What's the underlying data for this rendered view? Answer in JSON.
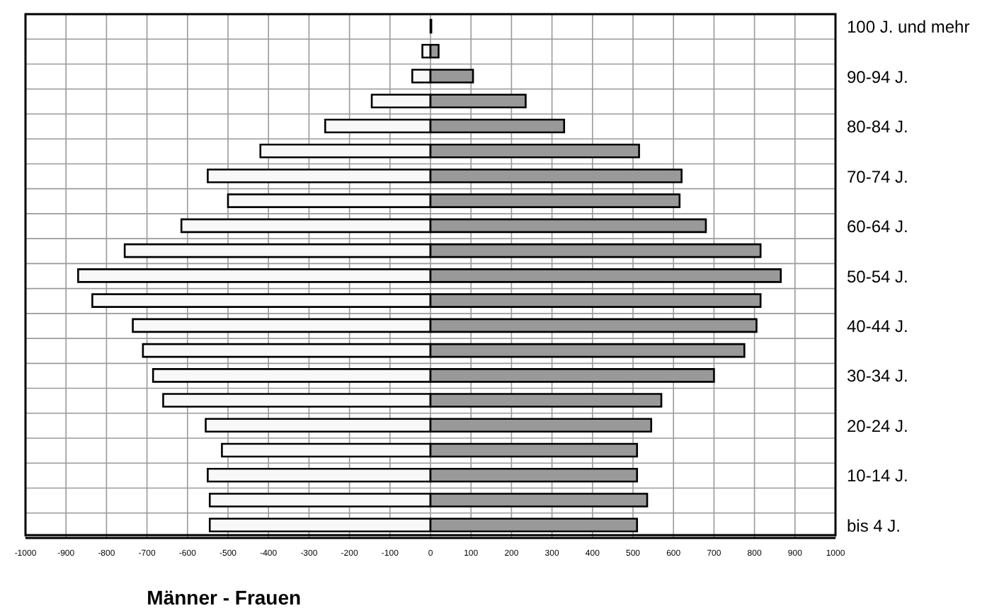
{
  "chart_data": {
    "type": "bar",
    "orientation": "horizontal",
    "stacked": true,
    "xlabel": "Männer - Frauen",
    "categories": [
      "100 J. und mehr",
      null,
      "90-94 J.",
      null,
      "80-84 J.",
      null,
      "70-74 J.",
      null,
      "60-64 J.",
      null,
      "50-54 J.",
      null,
      "40-44 J.",
      null,
      "30-34 J.",
      null,
      "20-24 J.",
      null,
      "10-14 J.",
      null,
      "bis 4 J."
    ],
    "series": [
      {
        "color": "#f8f8f8",
        "values": [
          null,
          -20,
          -45,
          -145,
          -260,
          -420,
          -550,
          -500,
          -615,
          -755,
          -870,
          -835,
          -735,
          -710,
          -685,
          -660,
          -555,
          -515,
          -550,
          -545,
          -545
        ]
      },
      {
        "color": "#999999",
        "values": [
          2,
          20,
          105,
          235,
          330,
          515,
          620,
          615,
          680,
          815,
          865,
          815,
          805,
          775,
          700,
          570,
          545,
          510,
          510,
          535,
          510
        ]
      }
    ],
    "xlim": [
      -1000,
      1000
    ],
    "xticks": [
      -1000,
      -900,
      -800,
      -700,
      -600,
      -500,
      -400,
      -300,
      -200,
      -100,
      0,
      100,
      200,
      300,
      400,
      500,
      600,
      700,
      800,
      900,
      1000
    ],
    "grid": true
  }
}
